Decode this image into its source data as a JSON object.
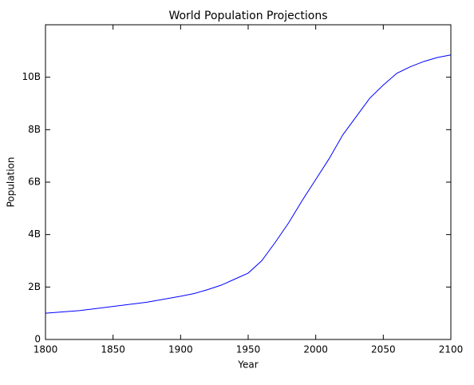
{
  "chart_data": {
    "type": "line",
    "title": "World Population Projections",
    "xlabel": "Year",
    "ylabel": "Population",
    "x": [
      1800,
      1825,
      1850,
      1875,
      1900,
      1910,
      1920,
      1930,
      1940,
      1950,
      1960,
      1970,
      1980,
      1990,
      2000,
      2010,
      2020,
      2030,
      2040,
      2050,
      2060,
      2070,
      2080,
      2090,
      2100
    ],
    "series": [
      {
        "name": "Population",
        "color": "#0000ff",
        "values": [
          1000000000,
          1100000000,
          1260000000,
          1420000000,
          1650000000,
          1750000000,
          1900000000,
          2070000000,
          2300000000,
          2530000000,
          3000000000,
          3700000000,
          4450000000,
          5300000000,
          6100000000,
          6900000000,
          7800000000,
          8500000000,
          9200000000,
          9700000000,
          10150000000,
          10400000000,
          10600000000,
          10750000000,
          10850000000
        ]
      }
    ],
    "xlim": [
      1800,
      2100
    ],
    "xticks": [
      1800,
      1850,
      1900,
      1950,
      2000,
      2050,
      2100
    ],
    "ylim": [
      0,
      12000000000
    ],
    "yticks": [
      0,
      {
        "value": 2000000000,
        "label": "2B"
      },
      {
        "value": 4000000000,
        "label": "4B"
      },
      {
        "value": 6000000000,
        "label": "6B"
      },
      {
        "value": 8000000000,
        "label": "8B"
      },
      {
        "value": 10000000000,
        "label": "10B"
      }
    ],
    "grid": false
  }
}
